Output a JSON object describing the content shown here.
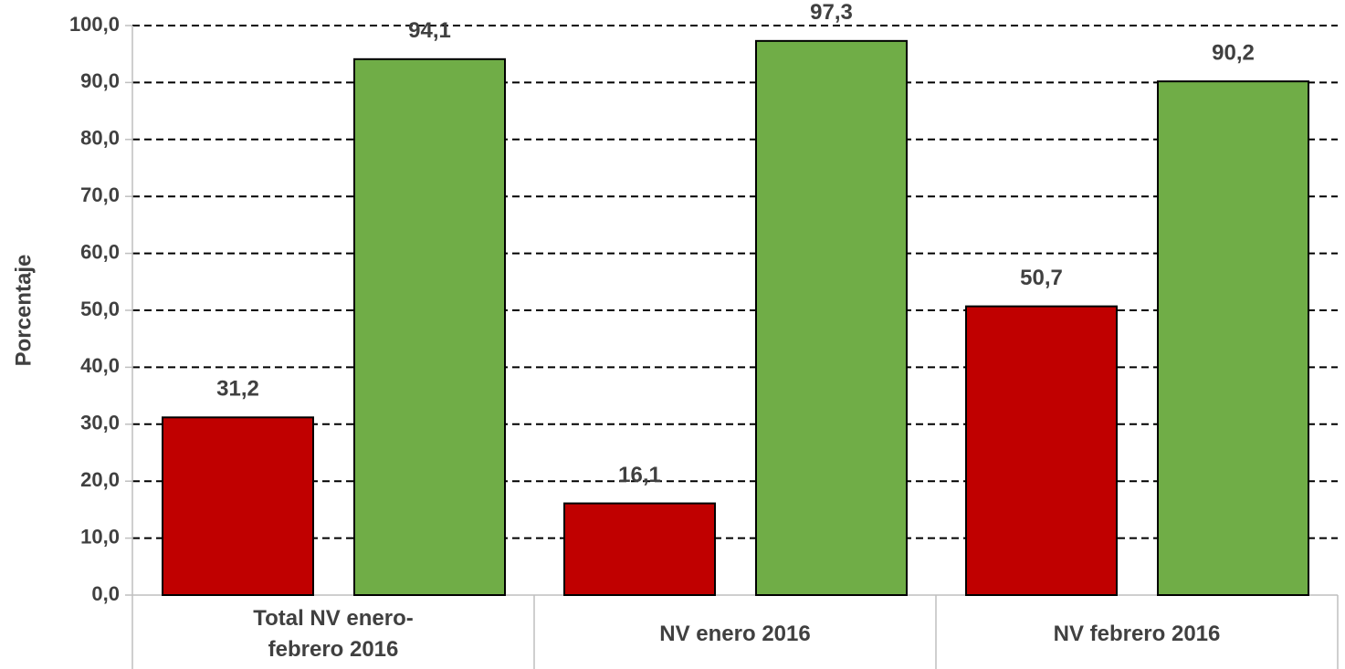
{
  "chart_data": {
    "type": "bar",
    "y_label": "Porcentaje",
    "categories": [
      "Total NV enero-febrero 2016",
      "NV enero 2016",
      "NV febrero 2016"
    ],
    "series": [
      {
        "color": "#c00000",
        "values": [
          31.2,
          16.1,
          50.7
        ],
        "value_labels": [
          "31,2",
          "16,1",
          "50,7"
        ]
      },
      {
        "color": "#70ad47",
        "values": [
          94.1,
          97.3,
          90.2
        ],
        "value_labels": [
          "94,1",
          "97,3",
          "90,2"
        ]
      }
    ],
    "ylim": [
      0,
      100
    ],
    "yticks": [
      {
        "value": 0,
        "label": "0,0"
      },
      {
        "value": 10,
        "label": "10,0"
      },
      {
        "value": 20,
        "label": "20,0"
      },
      {
        "value": 30,
        "label": "30,0"
      },
      {
        "value": 40,
        "label": "40,0"
      },
      {
        "value": 50,
        "label": "50,0"
      },
      {
        "value": 60,
        "label": "60,0"
      },
      {
        "value": 70,
        "label": "70,0"
      },
      {
        "value": 80,
        "label": "80,0"
      },
      {
        "value": 90,
        "label": "90,0"
      },
      {
        "value": 100,
        "label": "100,0"
      }
    ],
    "grid": true
  }
}
